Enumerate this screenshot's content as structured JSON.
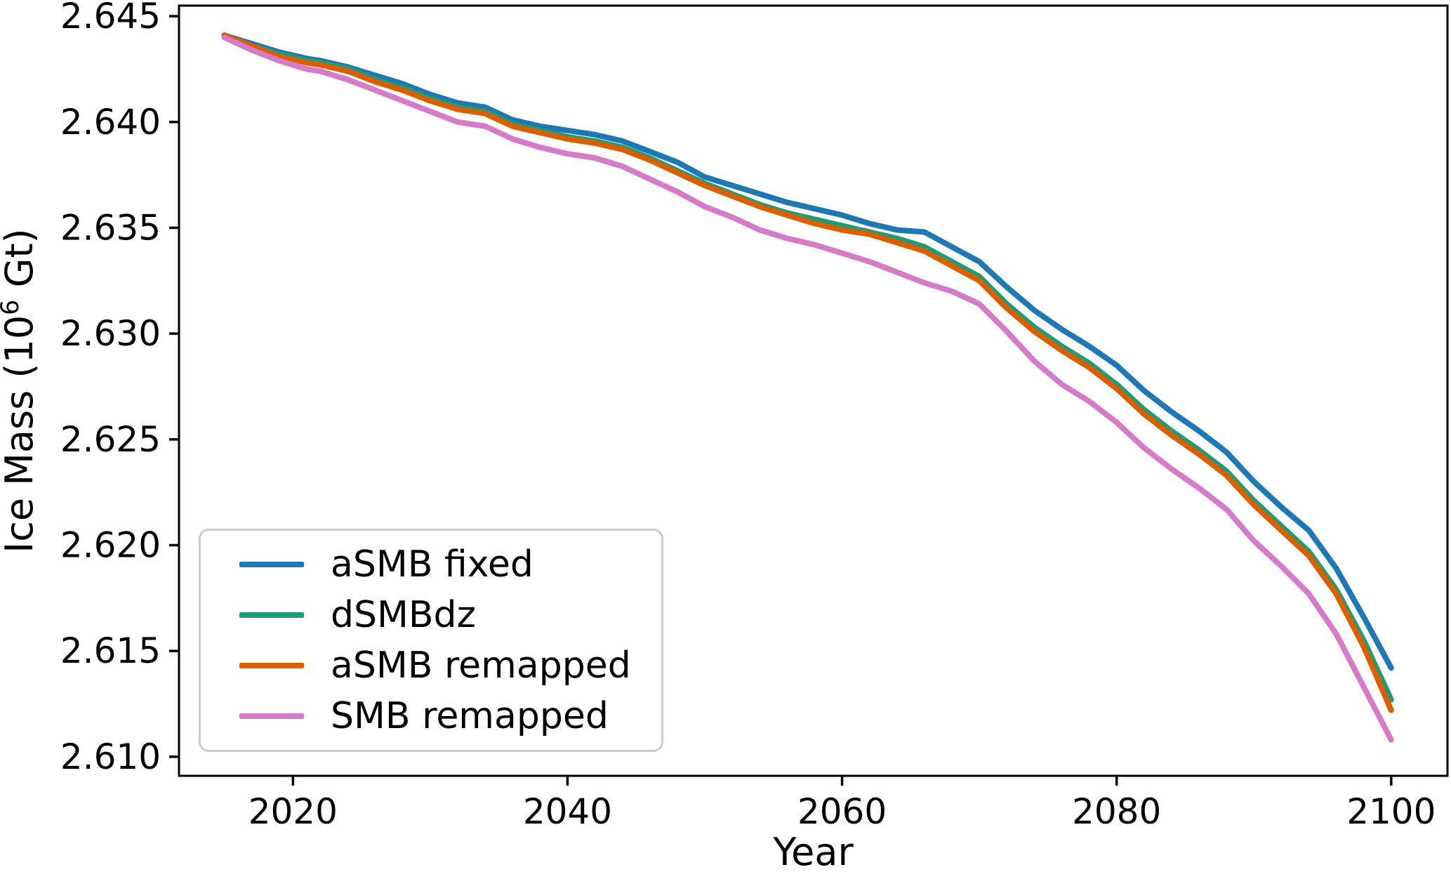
{
  "chart_data": {
    "type": "line",
    "title": "",
    "xlabel": "Year",
    "ylabel": "Ice Mass (10⁶ Gt)",
    "ylabel_parts": {
      "base": "Ice Mass (10",
      "sup": "6",
      "tail": " Gt)"
    },
    "xlim": [
      2011.7,
      2104.1
    ],
    "ylim": [
      2.6091,
      2.6455
    ],
    "xticks": [
      2020,
      2040,
      2060,
      2080,
      2100
    ],
    "yticks": [
      2.645,
      2.64,
      2.635,
      2.63,
      2.625,
      2.62,
      2.615,
      2.61
    ],
    "ytick_labels": [
      "2.645",
      "2.640",
      "2.635",
      "2.630",
      "2.625",
      "2.620",
      "2.615",
      "2.610"
    ],
    "grid": false,
    "legend_position": "lower left",
    "x": [
      2015,
      2017,
      2019,
      2021,
      2022,
      2024,
      2026,
      2028,
      2030,
      2032,
      2034,
      2036,
      2038,
      2040,
      2042,
      2044,
      2046,
      2048,
      2050,
      2052,
      2054,
      2056,
      2058,
      2060,
      2062,
      2064,
      2066,
      2068,
      2070,
      2072,
      2074,
      2076,
      2078,
      2080,
      2082,
      2084,
      2086,
      2088,
      2090,
      2092,
      2094,
      2096,
      2098,
      2100
    ],
    "series": [
      {
        "name": "aSMB fixed",
        "color": "#1f77b4",
        "values": [
          2.6441,
          2.6437,
          2.6433,
          2.643,
          2.6429,
          2.6426,
          2.6422,
          2.6418,
          2.6413,
          2.6409,
          2.6407,
          2.6401,
          2.6398,
          2.6396,
          2.6394,
          2.6391,
          2.6386,
          2.6381,
          2.6374,
          2.637,
          2.6366,
          2.6362,
          2.6359,
          2.6356,
          2.6352,
          2.6349,
          2.6348,
          2.6341,
          2.6334,
          2.6322,
          2.6311,
          2.6302,
          2.6294,
          2.6285,
          2.6273,
          2.6263,
          2.6254,
          2.6244,
          2.623,
          2.6218,
          2.6207,
          2.6189,
          2.6166,
          2.6142
        ]
      },
      {
        "name": "dSMBdz",
        "color": "#1b9e77",
        "values": [
          2.6441,
          2.6436,
          2.6432,
          2.6429,
          2.6428,
          2.6425,
          2.642,
          2.6416,
          2.6411,
          2.6407,
          2.6405,
          2.6399,
          2.6396,
          2.6393,
          2.6391,
          2.6388,
          2.6383,
          2.6377,
          2.6371,
          2.6366,
          2.6361,
          2.6357,
          2.6354,
          2.6351,
          2.6348,
          2.6345,
          2.6341,
          2.6334,
          2.6327,
          2.6314,
          2.6303,
          2.6294,
          2.6286,
          2.6276,
          2.6264,
          2.6254,
          2.6245,
          2.6235,
          2.6221,
          2.6209,
          2.6197,
          2.6179,
          2.6155,
          2.6127
        ]
      },
      {
        "name": "aSMB remapped",
        "color": "#d95f02",
        "values": [
          2.6441,
          2.6436,
          2.6431,
          2.6428,
          2.6427,
          2.6424,
          2.6419,
          2.6415,
          2.641,
          2.6406,
          2.6404,
          2.6398,
          2.6395,
          2.6392,
          2.639,
          2.6387,
          2.6382,
          2.6376,
          2.637,
          2.6365,
          2.636,
          2.6356,
          2.6352,
          2.6349,
          2.6347,
          2.6343,
          2.6339,
          2.6332,
          2.6325,
          2.6312,
          2.6301,
          2.6292,
          2.6284,
          2.6274,
          2.6262,
          2.6252,
          2.6243,
          2.6233,
          2.6219,
          2.6207,
          2.6195,
          2.6177,
          2.6152,
          2.6122
        ]
      },
      {
        "name": "SMB remapped",
        "color": "#d67bca",
        "values": [
          2.644,
          2.6434,
          2.6429,
          2.6425,
          2.6424,
          2.642,
          2.6415,
          2.641,
          2.6405,
          2.64,
          2.6398,
          2.6392,
          2.6388,
          2.6385,
          2.6383,
          2.6379,
          2.6373,
          2.6367,
          2.636,
          2.6355,
          2.6349,
          2.6345,
          2.6342,
          2.6338,
          2.6334,
          2.6329,
          2.6324,
          2.632,
          2.6314,
          2.6301,
          2.6287,
          2.6276,
          2.6268,
          2.6258,
          2.6246,
          2.6236,
          2.6227,
          2.6217,
          2.6202,
          2.619,
          2.6177,
          2.6158,
          2.6133,
          2.6108
        ]
      }
    ]
  }
}
